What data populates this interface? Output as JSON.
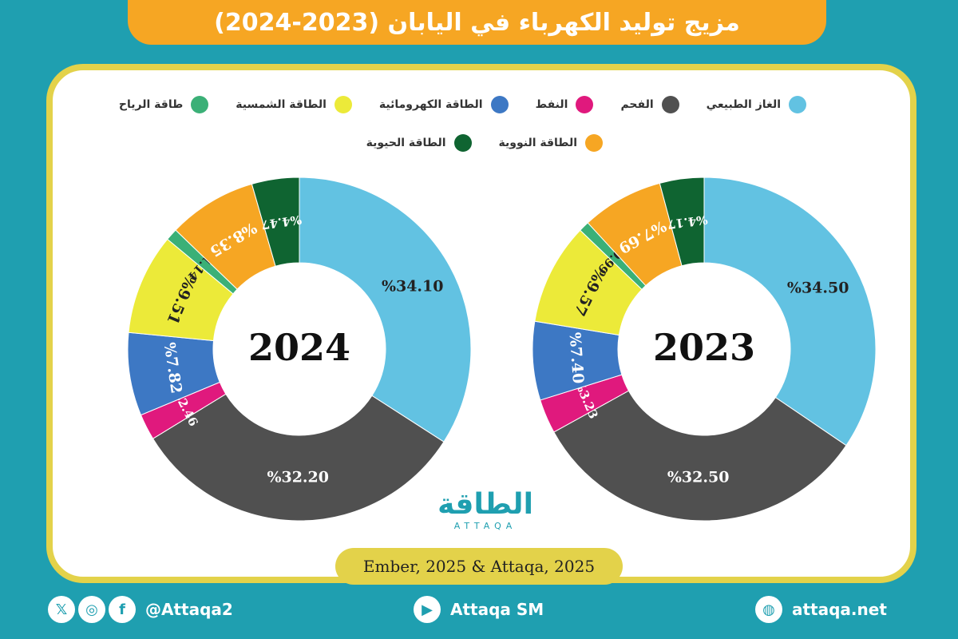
{
  "title": "مزيج توليد الكهرباء في اليابان (2023-2024)",
  "legend": [
    {
      "label": "الغاز الطبيعي",
      "color": "#62c2e2"
    },
    {
      "label": "الفحم",
      "color": "#505050"
    },
    {
      "label": "النفط",
      "color": "#e0197d"
    },
    {
      "label": "الطاقة الكهرومائية",
      "color": "#3d78c4"
    },
    {
      "label": "الطاقة الشمسية",
      "color": "#ecea39"
    },
    {
      "label": "طاقة الرياح",
      "color": "#3bb077"
    },
    {
      "label": "الطاقة النووية",
      "color": "#f6a623"
    },
    {
      "label": "الطاقة الحيوية",
      "color": "#0f6431"
    }
  ],
  "chart_data": [
    {
      "type": "pie",
      "center_label": "2023",
      "categories": [
        "الغاز الطبيعي",
        "الفحم",
        "النفط",
        "الطاقة الكهرومائية",
        "الطاقة الشمسية",
        "طاقة الرياح",
        "الطاقة النووية",
        "الطاقة الحيوية"
      ],
      "values": [
        34.5,
        32.5,
        3.23,
        7.4,
        9.57,
        0.99,
        7.69,
        4.17
      ],
      "labels": [
        "%34.50",
        "%32.50",
        "%3.23",
        "%7.40",
        "%9.57",
        "%0.99",
        "%7.69",
        "%4.17"
      ],
      "unit": "%"
    },
    {
      "type": "pie",
      "center_label": "2024",
      "categories": [
        "الغاز الطبيعي",
        "الفحم",
        "النفط",
        "الطاقة الكهرومائية",
        "الطاقة الشمسية",
        "طاقة الرياح",
        "الطاقة النووية",
        "الطاقة الحيوية"
      ],
      "values": [
        34.1,
        32.2,
        2.46,
        7.82,
        9.51,
        1.14,
        8.35,
        4.47
      ],
      "labels": [
        "%34.10",
        "%32.20",
        "%2.46",
        "%7.82",
        "%9.51",
        "%1.14",
        "%8.35",
        "%4.47"
      ],
      "unit": "%"
    }
  ],
  "logo": {
    "text": "الطاقة",
    "subtext": "ATTAQA"
  },
  "source": "Ember, 2025 & Attaqa, 2025",
  "footer": {
    "social_handle": "@Attaqa2",
    "youtube": "Attaqa SM",
    "website": "attaqa.net",
    "x_icon": "x-icon",
    "instagram_icon": "instagram-icon",
    "facebook_icon": "facebook-icon",
    "youtube_icon": "youtube-icon",
    "globe_icon": "globe-icon"
  }
}
